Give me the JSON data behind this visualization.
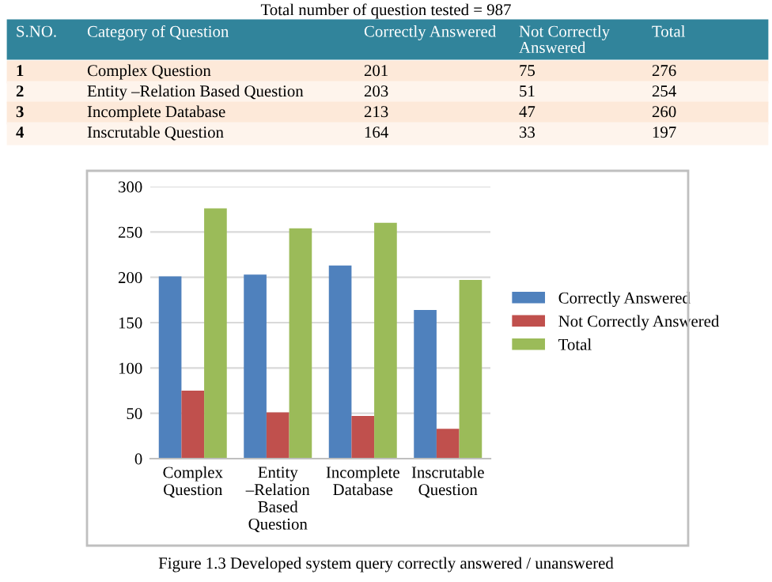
{
  "chart_data": {
    "type": "bar",
    "categories": [
      "Complex Question",
      "Entity –Relation Based Question",
      "Incomplete Database",
      "Inscrutable Question"
    ],
    "series": [
      {
        "name": "Correctly Answered",
        "color": "#4f81bd",
        "values": [
          201,
          203,
          213,
          164
        ]
      },
      {
        "name": "Not Correctly Answered",
        "color": "#c0504d",
        "values": [
          75,
          51,
          47,
          33
        ]
      },
      {
        "name": "Total",
        "color": "#9bbb59",
        "values": [
          276,
          254,
          260,
          197
        ]
      }
    ],
    "ylim": [
      0,
      300
    ],
    "yticks": [
      0,
      50,
      100,
      150,
      200,
      250,
      300
    ],
    "grid": "y",
    "legend": "right",
    "annotations": [
      "Total number of question tested = 987",
      "S.NO.",
      "Category of Question",
      "1",
      "2",
      "3",
      "4",
      "Figure 1.3 Developed system query correctly answered / unanswered",
      "201",
      "75",
      "276",
      "203",
      "51",
      "254",
      "213",
      "47",
      "260",
      "164",
      "33",
      "197"
    ]
  }
}
